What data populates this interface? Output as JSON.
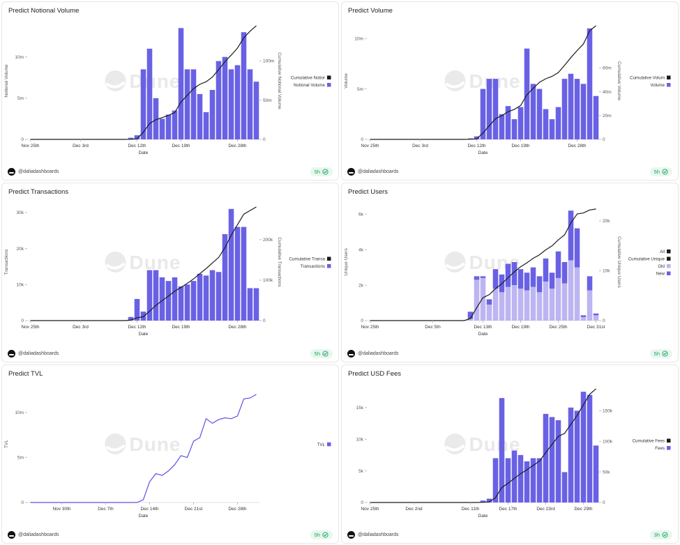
{
  "watermark": "Dune",
  "author_handle": "@daliadashboards",
  "colors": {
    "bar": "#6961e4",
    "bar_light": "#bcb5f1",
    "line": "#1a1a1a",
    "tvl_line": "#5b50e6",
    "badge_green": "#17a45f",
    "badge_bg": "#e8f7ee"
  },
  "chart_data": [
    {
      "type": "bar+line",
      "title": "Predict Notional Volume",
      "ylabel": "Notional Volume",
      "y2label": "Cumulative Notional Volume",
      "xlabel": "Date",
      "badge": "5h",
      "x_domain_days": 37,
      "ymax": 14.2,
      "cumulative": true,
      "yticks": [
        {
          "v": 0,
          "l": "0"
        },
        {
          "v": 5,
          "l": "5m"
        },
        {
          "v": 10,
          "l": "10m"
        }
      ],
      "y2ticks": [
        {
          "v": 0,
          "l": "0"
        },
        {
          "v": 50,
          "l": "50m"
        },
        {
          "v": 100,
          "l": "100m"
        }
      ],
      "xticks": [
        {
          "i": 0,
          "l": "Nov 25th"
        },
        {
          "i": 8,
          "l": "Dec 3rd"
        },
        {
          "i": 17,
          "l": "Dec 12th"
        },
        {
          "i": 24,
          "l": "Dec 19th"
        },
        {
          "i": 33,
          "l": "Dec 28th"
        }
      ],
      "bars": [
        [
          16,
          0.2
        ],
        [
          17,
          0.5
        ],
        [
          18,
          8.5
        ],
        [
          19,
          11
        ],
        [
          20,
          5
        ],
        [
          21,
          2.5
        ],
        [
          22,
          3
        ],
        [
          23,
          3.5
        ],
        [
          24,
          13.5
        ],
        [
          25,
          8.5
        ],
        [
          26,
          8.5
        ],
        [
          27,
          5.5
        ],
        [
          28,
          3.3
        ],
        [
          29,
          6
        ],
        [
          30,
          9.5
        ],
        [
          31,
          10
        ],
        [
          32,
          8.5
        ],
        [
          33,
          9
        ],
        [
          34,
          13
        ],
        [
          35,
          8.5
        ],
        [
          36,
          7
        ]
      ],
      "legend": [
        {
          "label": "Cumulative Notior",
          "color": "#1a1a1a"
        },
        {
          "label": "Notional Volume",
          "color": "#6961e4"
        }
      ]
    },
    {
      "type": "bar+line",
      "title": "Predict Volume",
      "ylabel": "Volume",
      "y2label": "Cumulative Volume",
      "xlabel": "Date",
      "badge": "5h",
      "x_domain_days": 37,
      "ymax": 11.6,
      "cumulative": true,
      "yticks": [
        {
          "v": 0,
          "l": "0"
        },
        {
          "v": 5,
          "l": "5m"
        },
        {
          "v": 10,
          "l": "10m"
        }
      ],
      "y2ticks": [
        {
          "v": 0,
          "l": "0"
        },
        {
          "v": 20,
          "l": "20m"
        },
        {
          "v": 40,
          "l": "40m"
        },
        {
          "v": 60,
          "l": "60m"
        }
      ],
      "xticks": [
        {
          "i": 0,
          "l": "Nov 25th"
        },
        {
          "i": 8,
          "l": "Dec 3rd"
        },
        {
          "i": 17,
          "l": "Dec 12th"
        },
        {
          "i": 24,
          "l": "Dec 19th"
        },
        {
          "i": 33,
          "l": "Dec 28th"
        }
      ],
      "bars": [
        [
          16,
          0.1
        ],
        [
          17,
          0.3
        ],
        [
          18,
          5
        ],
        [
          19,
          6
        ],
        [
          20,
          6
        ],
        [
          21,
          2.5
        ],
        [
          22,
          3.3
        ],
        [
          23,
          2
        ],
        [
          24,
          3.2
        ],
        [
          25,
          9
        ],
        [
          26,
          5.5
        ],
        [
          27,
          5
        ],
        [
          28,
          3
        ],
        [
          29,
          2
        ],
        [
          30,
          3.2
        ],
        [
          31,
          6
        ],
        [
          32,
          6.5
        ],
        [
          33,
          6
        ],
        [
          34,
          5.5
        ],
        [
          35,
          11
        ],
        [
          36,
          4.3
        ]
      ],
      "legend": [
        {
          "label": "Cumulative Volum",
          "color": "#1a1a1a"
        },
        {
          "label": "Volume",
          "color": "#6961e4"
        }
      ]
    },
    {
      "type": "bar+line",
      "title": "Predict Transactions",
      "ylabel": "Transactions",
      "y2label": "Cumulative Transactions",
      "xlabel": "Date",
      "badge": "5h",
      "x_domain_days": 37,
      "ymax": 32.5,
      "cumulative": true,
      "yticks": [
        {
          "v": 0,
          "l": "0"
        },
        {
          "v": 10,
          "l": "10k"
        },
        {
          "v": 20,
          "l": "20k"
        },
        {
          "v": 30,
          "l": "30k"
        }
      ],
      "y2ticks": [
        {
          "v": 0,
          "l": "0"
        },
        {
          "v": 100,
          "l": "100k"
        },
        {
          "v": 200,
          "l": "200k"
        }
      ],
      "xticks": [
        {
          "i": 0,
          "l": "Nov 25th"
        },
        {
          "i": 8,
          "l": "Dec 3rd"
        },
        {
          "i": 17,
          "l": "Dec 12th"
        },
        {
          "i": 24,
          "l": "Dec 19th"
        },
        {
          "i": 33,
          "l": "Dec 28th"
        }
      ],
      "bars": [
        [
          16,
          1
        ],
        [
          17,
          6
        ],
        [
          18,
          2.5
        ],
        [
          19,
          14
        ],
        [
          20,
          14
        ],
        [
          21,
          12
        ],
        [
          22,
          11
        ],
        [
          23,
          12
        ],
        [
          24,
          9.5
        ],
        [
          25,
          10
        ],
        [
          26,
          11
        ],
        [
          27,
          13
        ],
        [
          28,
          12.5
        ],
        [
          29,
          14
        ],
        [
          30,
          13.5
        ],
        [
          31,
          24
        ],
        [
          32,
          31
        ],
        [
          33,
          26
        ],
        [
          34,
          26
        ],
        [
          35,
          9
        ],
        [
          36,
          9
        ]
      ],
      "legend": [
        {
          "label": "Cumulative Transa",
          "color": "#1a1a1a"
        },
        {
          "label": "Transactions",
          "color": "#6961e4"
        }
      ]
    },
    {
      "type": "stacked-bar+line",
      "title": "Predict Users",
      "ylabel": "Unique Users",
      "y2label": "Cumulative Unique Users",
      "xlabel": "Date",
      "badge": "5h",
      "x_domain_days": 37,
      "ymax": 6.6,
      "y2max": 23.5,
      "yticks": [
        {
          "v": 0,
          "l": "0"
        },
        {
          "v": 2,
          "l": "2k"
        },
        {
          "v": 4,
          "l": "4k"
        },
        {
          "v": 6,
          "l": "6k"
        }
      ],
      "y2ticks": [
        {
          "v": 0,
          "l": "0"
        },
        {
          "v": 10,
          "l": "10k"
        },
        {
          "v": 20,
          "l": "20k"
        }
      ],
      "xticks": [
        {
          "i": 0,
          "l": "Nov 25th"
        },
        {
          "i": 10,
          "l": "Dec 5th"
        },
        {
          "i": 18,
          "l": "Dec 13th"
        },
        {
          "i": 24,
          "l": "Dec 19th"
        },
        {
          "i": 30,
          "l": "Dec 25th"
        },
        {
          "i": 36,
          "l": "Dec 31st"
        }
      ],
      "series": [
        {
          "name": "Old",
          "color": "#bcb5f1",
          "values": [
            [
              16,
              0.1
            ],
            [
              17,
              2.3
            ],
            [
              18,
              2.4
            ],
            [
              19,
              0.9
            ],
            [
              20,
              1.8
            ],
            [
              21,
              1.6
            ],
            [
              22,
              1.9
            ],
            [
              23,
              2.0
            ],
            [
              24,
              1.8
            ],
            [
              25,
              1.7
            ],
            [
              26,
              1.9
            ],
            [
              27,
              1.6
            ],
            [
              28,
              2.2
            ],
            [
              29,
              1.8
            ],
            [
              30,
              2.4
            ],
            [
              31,
              2.1
            ],
            [
              32,
              3.4
            ],
            [
              33,
              3.0
            ],
            [
              34,
              0.2
            ],
            [
              35,
              1.7
            ],
            [
              36,
              0.3
            ]
          ]
        },
        {
          "name": "New",
          "color": "#6961e4",
          "values": [
            [
              16,
              0.4
            ],
            [
              17,
              0.2
            ],
            [
              18,
              0.1
            ],
            [
              19,
              0.3
            ],
            [
              20,
              1.1
            ],
            [
              21,
              1.0
            ],
            [
              22,
              1.3
            ],
            [
              23,
              1.3
            ],
            [
              24,
              1.1
            ],
            [
              25,
              1.0
            ],
            [
              26,
              1.1
            ],
            [
              27,
              0.9
            ],
            [
              28,
              1.3
            ],
            [
              29,
              0.9
            ],
            [
              30,
              1.5
            ],
            [
              31,
              1.2
            ],
            [
              32,
              2.8
            ],
            [
              33,
              2.2
            ],
            [
              34,
              0.1
            ],
            [
              35,
              0.8
            ],
            [
              36,
              0.1
            ]
          ]
        }
      ],
      "line_values": [
        0,
        0,
        0,
        0,
        0,
        0,
        0,
        0,
        0,
        0,
        0,
        0,
        0,
        0,
        0,
        0,
        0.4,
        2.6,
        4.6,
        5.2,
        6.4,
        7.4,
        8.6,
        9.8,
        10.8,
        11.6,
        12.5,
        13.2,
        14.2,
        15.0,
        16.2,
        17.2,
        19.6,
        21.4,
        21.6,
        22.2,
        22.4
      ],
      "legend": [
        {
          "label": "All",
          "color": "#1a1a1a"
        },
        {
          "label": "Cumulative Unique",
          "color": "#1a1a1a"
        },
        {
          "label": "Old",
          "color": "#bcb5f1"
        },
        {
          "label": "New",
          "color": "#6961e4"
        }
      ]
    },
    {
      "type": "line",
      "title": "Predict TVL",
      "ylabel": "TVL",
      "xlabel": "Date",
      "badge": "5h",
      "x_domain_days": 37,
      "ymax": 13,
      "line_axis": "left",
      "line_color": "#5b50e6",
      "yticks": [
        {
          "v": 0,
          "l": "0"
        },
        {
          "v": 5,
          "l": "5m"
        },
        {
          "v": 10,
          "l": "10m"
        }
      ],
      "xticks": [
        {
          "i": 5,
          "l": "Nov 30th"
        },
        {
          "i": 12,
          "l": "Dec 7th"
        },
        {
          "i": 19,
          "l": "Dec 14th"
        },
        {
          "i": 26,
          "l": "Dec 21st"
        },
        {
          "i": 33,
          "l": "Dec 28th"
        }
      ],
      "line_values": [
        0,
        0,
        0,
        0,
        0,
        0,
        0,
        0,
        0,
        0,
        0,
        0,
        0,
        0,
        0,
        0,
        0,
        0,
        0.3,
        2.3,
        3.2,
        3.0,
        3.5,
        4.2,
        5.2,
        5.0,
        6.8,
        7.2,
        9.3,
        8.8,
        9.2,
        9.4,
        9.3,
        9.6,
        11.5,
        11.6,
        12.0
      ],
      "legend": [
        {
          "label": "TVL",
          "color": "#6961e4"
        }
      ]
    },
    {
      "type": "bar+line",
      "title": "Predict USD Fees",
      "xlabel": "Date",
      "badge": "3h",
      "x_domain_days": 37,
      "ymax": 18.5,
      "cumulative": true,
      "yticks": [
        {
          "v": 0,
          "l": "0"
        },
        {
          "v": 5,
          "l": "5k"
        },
        {
          "v": 10,
          "l": "10k"
        },
        {
          "v": 15,
          "l": "15k"
        }
      ],
      "y2ticks": [
        {
          "v": 0,
          "l": "0"
        },
        {
          "v": 50,
          "l": "50k"
        },
        {
          "v": 100,
          "l": "100k"
        },
        {
          "v": 150,
          "l": "150k"
        }
      ],
      "xticks": [
        {
          "i": 0,
          "l": "Nov 25th"
        },
        {
          "i": 7,
          "l": "Dec 2nd"
        },
        {
          "i": 16,
          "l": "Dec 11th"
        },
        {
          "i": 22,
          "l": "Dec 17th"
        },
        {
          "i": 28,
          "l": "Dec 23rd"
        },
        {
          "i": 34,
          "l": "Dec 29th"
        }
      ],
      "bars": [
        [
          18,
          0.3
        ],
        [
          19,
          0.6
        ],
        [
          20,
          7
        ],
        [
          21,
          16.5
        ],
        [
          22,
          7
        ],
        [
          23,
          8.2
        ],
        [
          24,
          7.5
        ],
        [
          25,
          6.5
        ],
        [
          26,
          7
        ],
        [
          27,
          7
        ],
        [
          28,
          14
        ],
        [
          29,
          13.5
        ],
        [
          30,
          13
        ],
        [
          31,
          4.8
        ],
        [
          32,
          15
        ],
        [
          33,
          14.5
        ],
        [
          34,
          17.5
        ],
        [
          35,
          17
        ],
        [
          36,
          9
        ]
      ],
      "legend": [
        {
          "label": "Cumulative Fees",
          "color": "#1a1a1a"
        },
        {
          "label": "Fees",
          "color": "#6961e4"
        }
      ]
    }
  ]
}
